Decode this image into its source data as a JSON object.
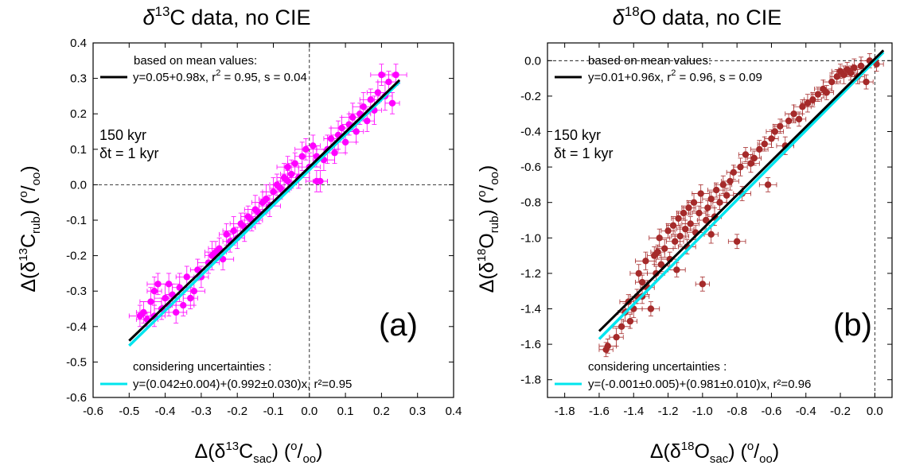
{
  "chart_data": [
    {
      "type": "scatter",
      "panel_label": "(a)",
      "title": {
        "pre": "δ",
        "sup": "13",
        "post": "C data, no CIE"
      },
      "xlabel": {
        "pre": "Δ(δ",
        "sup": "13",
        "mid": "C",
        "sub": "sac",
        "post": ") (",
        "unit_sup": "o",
        "unit_post": "/",
        "unit_sub": "oo",
        "end": ")"
      },
      "ylabel": {
        "pre": "Δ(δ",
        "sup": "13",
        "mid": "C",
        "sub": "rub",
        "post": ") (",
        "unit_sup": "o",
        "unit_post": "/",
        "unit_sub": "oo",
        "end": ")"
      },
      "xlim": [
        -0.6,
        0.4
      ],
      "ylim": [
        -0.6,
        0.4
      ],
      "xticks": [
        "-0.6",
        "-0.5",
        "-0.4",
        "-0.3",
        "-0.2",
        "-0.1",
        "0.0",
        "0.1",
        "0.2",
        "0.3",
        "0.4"
      ],
      "yticks": [
        "-0.6",
        "-0.5",
        "-0.4",
        "-0.3",
        "-0.2",
        "-0.1",
        "0.0",
        "0.1",
        "0.2",
        "0.3",
        "0.4"
      ],
      "xtick_values": [
        -0.6,
        -0.5,
        -0.4,
        -0.3,
        -0.2,
        -0.1,
        0.0,
        0.1,
        0.2,
        0.3,
        0.4
      ],
      "ytick_values": [
        -0.6,
        -0.5,
        -0.4,
        -0.3,
        -0.2,
        -0.1,
        0.0,
        0.1,
        0.2,
        0.3,
        0.4
      ],
      "point_color": "#ff00ff",
      "zero_lines": {
        "x": 0.0,
        "y": 0.0
      },
      "fit_mean": {
        "color": "#000000",
        "intercept": 0.05,
        "slope": 0.98,
        "x_range": [
          -0.5,
          0.25
        ]
      },
      "fit_unc": {
        "color": "#00e5ee",
        "intercept": 0.042,
        "slope": 0.992,
        "x_range": [
          -0.5,
          0.25
        ]
      },
      "annotations": {
        "mean_header": "based on mean values:",
        "mean_eq": {
          "pre": "y=0.05+0.98x, r",
          "sup": "2",
          "post": " = 0.95, s = 0.04"
        },
        "duration": "150 kyr",
        "dt": "δt = 1 kyr",
        "unc_header": "considering uncertainties :",
        "unc_eq": "y=(0.042±0.004)+(0.992±0.030)x, r²=0.95"
      },
      "points": [
        [
          -0.47,
          -0.37,
          0.03,
          0.03
        ],
        [
          -0.46,
          -0.36,
          0.02,
          0.03
        ],
        [
          -0.45,
          -0.38,
          0.03,
          0.02
        ],
        [
          -0.44,
          -0.33,
          0.03,
          0.04
        ],
        [
          -0.43,
          -0.3,
          0.02,
          0.04
        ],
        [
          -0.42,
          -0.28,
          0.03,
          0.03
        ],
        [
          -0.41,
          -0.35,
          0.02,
          0.03
        ],
        [
          -0.4,
          -0.32,
          0.03,
          0.04
        ],
        [
          -0.39,
          -0.28,
          0.03,
          0.03
        ],
        [
          -0.38,
          -0.31,
          0.02,
          0.03
        ],
        [
          -0.37,
          -0.36,
          0.03,
          0.03
        ],
        [
          -0.36,
          -0.29,
          0.02,
          0.04
        ],
        [
          -0.35,
          -0.34,
          0.03,
          0.03
        ],
        [
          -0.34,
          -0.26,
          0.03,
          0.03
        ],
        [
          -0.33,
          -0.32,
          0.02,
          0.03
        ],
        [
          -0.32,
          -0.3,
          0.03,
          0.04
        ],
        [
          -0.3,
          -0.26,
          0.02,
          0.03
        ],
        [
          -0.28,
          -0.22,
          0.03,
          0.03
        ],
        [
          -0.27,
          -0.2,
          0.02,
          0.04
        ],
        [
          -0.25,
          -0.18,
          0.03,
          0.03
        ],
        [
          -0.24,
          -0.21,
          0.03,
          0.03
        ],
        [
          -0.22,
          -0.16,
          0.02,
          0.03
        ],
        [
          -0.21,
          -0.13,
          0.03,
          0.04
        ],
        [
          -0.2,
          -0.15,
          0.02,
          0.03
        ],
        [
          -0.19,
          -0.11,
          0.03,
          0.03
        ],
        [
          -0.18,
          -0.12,
          0.03,
          0.04
        ],
        [
          -0.17,
          -0.09,
          0.02,
          0.03
        ],
        [
          -0.16,
          -0.1,
          0.03,
          0.03
        ],
        [
          -0.15,
          -0.07,
          0.03,
          0.04
        ],
        [
          -0.14,
          -0.08,
          0.02,
          0.03
        ],
        [
          -0.13,
          -0.05,
          0.03,
          0.03
        ],
        [
          -0.12,
          -0.04,
          0.02,
          0.04
        ],
        [
          -0.11,
          -0.06,
          0.03,
          0.03
        ],
        [
          -0.1,
          -0.02,
          0.03,
          0.04
        ],
        [
          -0.09,
          0.0,
          0.02,
          0.03
        ],
        [
          -0.08,
          -0.01,
          0.03,
          0.03
        ],
        [
          -0.07,
          0.02,
          0.02,
          0.04
        ],
        [
          -0.06,
          0.05,
          0.03,
          0.03
        ],
        [
          -0.05,
          0.03,
          0.03,
          0.04
        ],
        [
          -0.04,
          0.06,
          0.02,
          0.03
        ],
        [
          -0.03,
          0.02,
          0.03,
          0.03
        ],
        [
          -0.02,
          0.08,
          0.02,
          0.04
        ],
        [
          -0.01,
          0.1,
          0.03,
          0.03
        ],
        [
          0.0,
          0.05,
          0.03,
          0.04
        ],
        [
          0.01,
          0.11,
          0.02,
          0.03
        ],
        [
          0.02,
          0.01,
          0.03,
          0.03
        ],
        [
          0.03,
          0.01,
          0.02,
          0.03
        ],
        [
          0.04,
          0.07,
          0.03,
          0.03
        ],
        [
          0.05,
          0.1,
          0.03,
          0.04
        ],
        [
          0.06,
          0.13,
          0.02,
          0.03
        ],
        [
          0.07,
          0.09,
          0.03,
          0.03
        ],
        [
          0.08,
          0.14,
          0.02,
          0.04
        ],
        [
          0.09,
          0.16,
          0.03,
          0.03
        ],
        [
          0.1,
          0.12,
          0.03,
          0.03
        ],
        [
          0.11,
          0.17,
          0.02,
          0.03
        ],
        [
          0.12,
          0.19,
          0.03,
          0.04
        ],
        [
          0.13,
          0.15,
          0.02,
          0.03
        ],
        [
          0.14,
          0.2,
          0.03,
          0.03
        ],
        [
          0.15,
          0.22,
          0.03,
          0.04
        ],
        [
          0.16,
          0.18,
          0.02,
          0.03
        ],
        [
          0.17,
          0.24,
          0.03,
          0.03
        ],
        [
          0.18,
          0.21,
          0.02,
          0.04
        ],
        [
          0.19,
          0.26,
          0.03,
          0.03
        ],
        [
          0.2,
          0.31,
          0.03,
          0.03
        ],
        [
          0.21,
          0.25,
          0.02,
          0.04
        ],
        [
          0.22,
          0.29,
          0.03,
          0.03
        ],
        [
          0.23,
          0.23,
          0.02,
          0.03
        ],
        [
          0.24,
          0.31,
          0.03,
          0.03
        ],
        [
          -0.31,
          -0.24,
          0.02,
          0.03
        ],
        [
          -0.26,
          -0.19,
          0.03,
          0.03
        ],
        [
          -0.23,
          -0.14,
          0.02,
          0.03
        ],
        [
          -0.06,
          0.01,
          0.03,
          0.03
        ],
        [
          0.02,
          0.08,
          0.02,
          0.03
        ],
        [
          -0.43,
          -0.37,
          0.03,
          0.03
        ],
        [
          -0.39,
          -0.34,
          0.02,
          0.03
        ]
      ]
    },
    {
      "type": "scatter",
      "panel_label": "(b)",
      "title": {
        "pre": "δ",
        "sup": "18",
        "post": "O data, no CIE"
      },
      "xlabel": {
        "pre": "Δ(δ",
        "sup": "18",
        "mid": "O",
        "sub": "sac",
        "post": ") (",
        "unit_sup": "o",
        "unit_post": "/",
        "unit_sub": "oo",
        "end": ")"
      },
      "ylabel": {
        "pre": "Δ(δ",
        "sup": "18",
        "mid": "O",
        "sub": "rub",
        "post": ") (",
        "unit_sup": "o",
        "unit_post": "/",
        "unit_sub": "oo",
        "end": ")"
      },
      "xlim": [
        -1.9,
        0.1
      ],
      "ylim": [
        -1.9,
        0.1
      ],
      "xticks": [
        "-1.8",
        "-1.6",
        "-1.4",
        "-1.2",
        "-1.0",
        "-0.8",
        "-0.6",
        "-0.4",
        "-0.2",
        "0.0"
      ],
      "yticks": [
        "-1.8",
        "-1.6",
        "-1.4",
        "-1.2",
        "-1.0",
        "-0.8",
        "-0.6",
        "-0.4",
        "-0.2",
        "0.0"
      ],
      "xtick_values": [
        -1.8,
        -1.6,
        -1.4,
        -1.2,
        -1.0,
        -0.8,
        -0.6,
        -0.4,
        -0.2,
        0.0
      ],
      "ytick_values": [
        -1.8,
        -1.6,
        -1.4,
        -1.2,
        -1.0,
        -0.8,
        -0.6,
        -0.4,
        -0.2,
        0.0
      ],
      "point_color": "#a52a2a",
      "zero_lines": {
        "x": 0.0,
        "y": 0.0
      },
      "fit_mean": {
        "color": "#000000",
        "intercept": 0.01,
        "slope": 0.96,
        "x_range": [
          -1.6,
          0.05
        ]
      },
      "fit_unc": {
        "color": "#00e5ee",
        "intercept": -0.001,
        "slope": 0.981,
        "x_range": [
          -1.6,
          0.05
        ]
      },
      "annotations": {
        "mean_header": "based on mean values:",
        "mean_eq": {
          "pre": "y=0.01+0.96x, r",
          "sup": "2",
          "post": " = 0.96, s = 0.09"
        },
        "duration": "150 kyr",
        "dt": "δt = 1 kyr",
        "unc_header": "considering uncertainties :",
        "unc_eq": "y=(-0.001±0.005)+(0.981±0.010)x, r²=0.96"
      },
      "points": [
        [
          -1.56,
          -1.63,
          0.04,
          0.04
        ],
        [
          -1.55,
          -1.61,
          0.05,
          0.04
        ],
        [
          -1.5,
          -1.56,
          0.04,
          0.05
        ],
        [
          -1.47,
          -1.5,
          0.05,
          0.04
        ],
        [
          -1.45,
          -1.42,
          0.04,
          0.05
        ],
        [
          -1.43,
          -1.36,
          0.05,
          0.04
        ],
        [
          -1.42,
          -1.47,
          0.04,
          0.04
        ],
        [
          -1.4,
          -1.4,
          0.05,
          0.05
        ],
        [
          -1.38,
          -1.33,
          0.04,
          0.04
        ],
        [
          -1.37,
          -1.2,
          0.05,
          0.05
        ],
        [
          -1.35,
          -1.25,
          0.04,
          0.04
        ],
        [
          -1.33,
          -1.13,
          0.06,
          0.05
        ],
        [
          -1.32,
          -1.28,
          0.04,
          0.04
        ],
        [
          -1.3,
          -1.4,
          0.05,
          0.04
        ],
        [
          -1.28,
          -1.1,
          0.04,
          0.05
        ],
        [
          -1.27,
          -1.2,
          0.05,
          0.04
        ],
        [
          -1.25,
          -1.0,
          0.06,
          0.05
        ],
        [
          -1.24,
          -1.15,
          0.04,
          0.04
        ],
        [
          -1.22,
          -1.06,
          0.05,
          0.05
        ],
        [
          -1.2,
          -0.96,
          0.04,
          0.04
        ],
        [
          -1.19,
          -1.12,
          0.05,
          0.04
        ],
        [
          -1.17,
          -0.93,
          0.04,
          0.05
        ],
        [
          -1.16,
          -1.02,
          0.05,
          0.04
        ],
        [
          -1.14,
          -0.89,
          0.04,
          0.04
        ],
        [
          -1.13,
          -0.99,
          0.05,
          0.05
        ],
        [
          -1.11,
          -0.86,
          0.04,
          0.04
        ],
        [
          -1.1,
          -0.95,
          0.05,
          0.05
        ],
        [
          -1.08,
          -0.83,
          0.04,
          0.04
        ],
        [
          -1.07,
          -0.92,
          0.05,
          0.04
        ],
        [
          -1.05,
          -0.8,
          0.04,
          0.05
        ],
        [
          -1.04,
          -0.97,
          0.05,
          0.04
        ],
        [
          -1.02,
          -0.86,
          0.04,
          0.04
        ],
        [
          -1.01,
          -0.75,
          0.05,
          0.05
        ],
        [
          -1.0,
          -1.26,
          0.04,
          0.04
        ],
        [
          -0.98,
          -0.9,
          0.05,
          0.05
        ],
        [
          -0.97,
          -0.83,
          0.04,
          0.04
        ],
        [
          -0.95,
          -0.78,
          0.05,
          0.04
        ],
        [
          -0.93,
          -0.88,
          0.04,
          0.05
        ],
        [
          -0.92,
          -0.73,
          0.05,
          0.04
        ],
        [
          -0.9,
          -0.8,
          0.04,
          0.04
        ],
        [
          -0.88,
          -0.7,
          0.05,
          0.05
        ],
        [
          -0.86,
          -0.76,
          0.04,
          0.04
        ],
        [
          -0.84,
          -0.68,
          0.05,
          0.05
        ],
        [
          -0.82,
          -0.63,
          0.04,
          0.04
        ],
        [
          -0.8,
          -1.02,
          0.05,
          0.04
        ],
        [
          -0.78,
          -0.6,
          0.04,
          0.05
        ],
        [
          -0.77,
          -0.75,
          0.05,
          0.04
        ],
        [
          -0.75,
          -0.53,
          0.04,
          0.04
        ],
        [
          -0.72,
          -0.58,
          0.05,
          0.05
        ],
        [
          -0.7,
          -0.55,
          0.04,
          0.04
        ],
        [
          -0.67,
          -0.5,
          0.05,
          0.05
        ],
        [
          -0.64,
          -0.47,
          0.04,
          0.04
        ],
        [
          -0.62,
          -0.7,
          0.05,
          0.04
        ],
        [
          -0.6,
          -0.44,
          0.04,
          0.05
        ],
        [
          -0.58,
          -0.4,
          0.05,
          0.04
        ],
        [
          -0.55,
          -0.37,
          0.04,
          0.04
        ],
        [
          -0.52,
          -0.48,
          0.05,
          0.05
        ],
        [
          -0.5,
          -0.34,
          0.04,
          0.04
        ],
        [
          -0.47,
          -0.3,
          0.05,
          0.05
        ],
        [
          -0.44,
          -0.33,
          0.04,
          0.04
        ],
        [
          -0.42,
          -0.26,
          0.05,
          0.04
        ],
        [
          -0.39,
          -0.24,
          0.04,
          0.05
        ],
        [
          -0.36,
          -0.22,
          0.05,
          0.04
        ],
        [
          -0.33,
          -0.19,
          0.04,
          0.04
        ],
        [
          -0.3,
          -0.16,
          0.05,
          0.05
        ],
        [
          -0.28,
          -0.18,
          0.04,
          0.04
        ],
        [
          -0.25,
          -0.12,
          0.05,
          0.05
        ],
        [
          -0.22,
          -0.09,
          0.04,
          0.04
        ],
        [
          -0.2,
          -0.06,
          0.05,
          0.04
        ],
        [
          -0.18,
          -0.08,
          0.04,
          0.05
        ],
        [
          -0.16,
          -0.05,
          0.05,
          0.04
        ],
        [
          -0.14,
          -0.07,
          0.04,
          0.04
        ],
        [
          -0.12,
          -0.04,
          0.05,
          0.05
        ],
        [
          -0.1,
          -0.09,
          0.04,
          0.04
        ],
        [
          -0.08,
          -0.03,
          0.05,
          0.05
        ],
        [
          -0.05,
          -0.12,
          0.04,
          0.04
        ],
        [
          -0.03,
          0.0,
          0.05,
          0.04
        ],
        [
          0.01,
          -0.02,
          0.04,
          0.04
        ],
        [
          -1.35,
          -1.33,
          0.04,
          0.04
        ],
        [
          -1.15,
          -1.18,
          0.05,
          0.04
        ],
        [
          -0.95,
          -0.98,
          0.04,
          0.05
        ],
        [
          -1.26,
          -1.08,
          0.04,
          0.04
        ],
        [
          -1.09,
          -1.05,
          0.05,
          0.04
        ]
      ]
    }
  ]
}
